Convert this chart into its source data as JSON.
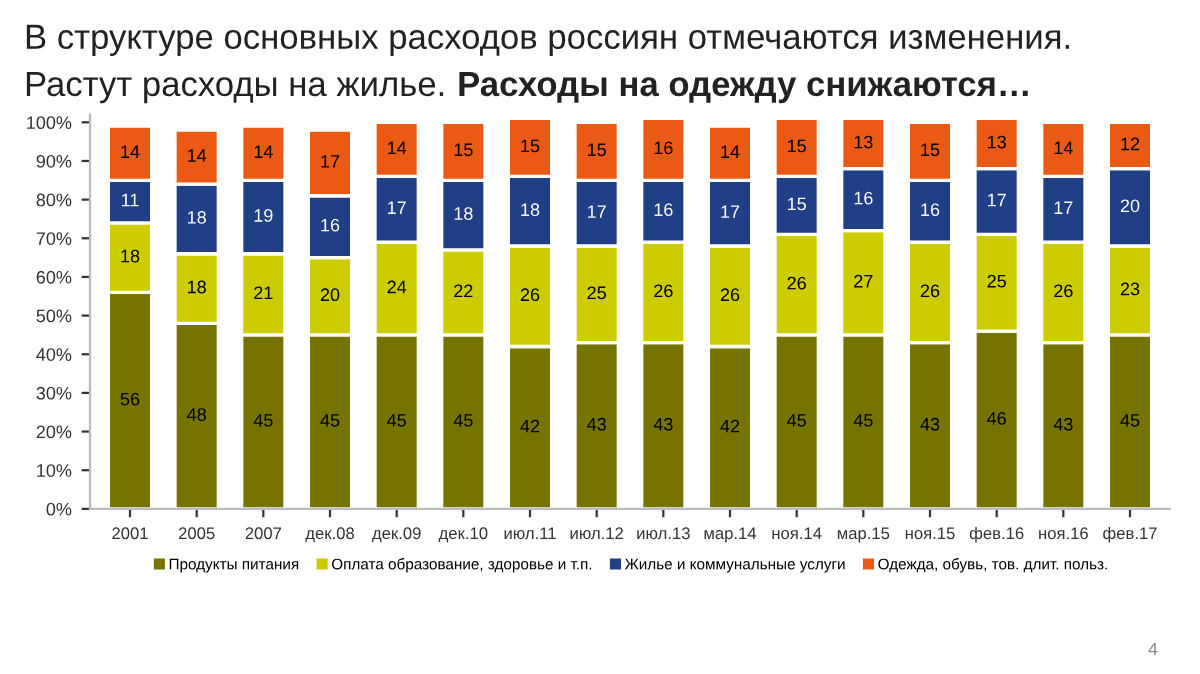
{
  "chart_data": {
    "type": "bar",
    "stacked": true,
    "title": "В структуре основных расходов россиян отмечаются изменения.\nРастут расходы на жилье.",
    "subtitle": "Расходы на одежду снижаются…",
    "categories": [
      "2001",
      "2005",
      "2007",
      "дек.08",
      "дек.09",
      "дек.10",
      "июл.11",
      "июл.12",
      "июл.13",
      "мар.14",
      "ноя.14",
      "мар.15",
      "ноя.15",
      "фев.16",
      "ноя.16",
      "фев.17"
    ],
    "series": [
      {
        "name": "Продукты питания",
        "color": "#777300",
        "values": [
          56,
          48,
          45,
          45,
          45,
          45,
          42,
          43,
          43,
          42,
          45,
          45,
          43,
          46,
          43,
          45
        ]
      },
      {
        "name": "Оплата образование, здоровье и т.п.",
        "color": "#cccc00",
        "values": [
          18,
          18,
          21,
          20,
          24,
          22,
          26,
          25,
          26,
          26,
          26,
          27,
          26,
          25,
          26,
          23
        ]
      },
      {
        "name": "Жилье и коммунальные услуги",
        "color": "#213f85",
        "values": [
          11,
          18,
          19,
          16,
          17,
          18,
          18,
          17,
          16,
          17,
          15,
          16,
          16,
          17,
          17,
          20
        ]
      },
      {
        "name": "Одежда, обувь, тов. длит. польз.",
        "color": "#ea5a14",
        "values": [
          14,
          14,
          14,
          17,
          14,
          15,
          15,
          15,
          16,
          14,
          15,
          13,
          15,
          13,
          14,
          12
        ]
      }
    ],
    "ylim": [
      0,
      102
    ],
    "yticks": [
      {
        "value": 0,
        "label": "0%"
      },
      {
        "value": 10,
        "label": "10%"
      },
      {
        "value": 20,
        "label": "20%"
      },
      {
        "value": 30,
        "label": "30%"
      },
      {
        "value": 40,
        "label": "40%"
      },
      {
        "value": 50,
        "label": "50%"
      },
      {
        "value": 60,
        "label": "60%"
      },
      {
        "value": 70,
        "label": "70%"
      },
      {
        "value": 80,
        "label": "80%"
      },
      {
        "value": 90,
        "label": "90%"
      },
      {
        "value": 100,
        "label": "100%"
      }
    ],
    "data_labels": true,
    "grid": false,
    "legend": "bottom",
    "annotations": [
      "4"
    ]
  }
}
